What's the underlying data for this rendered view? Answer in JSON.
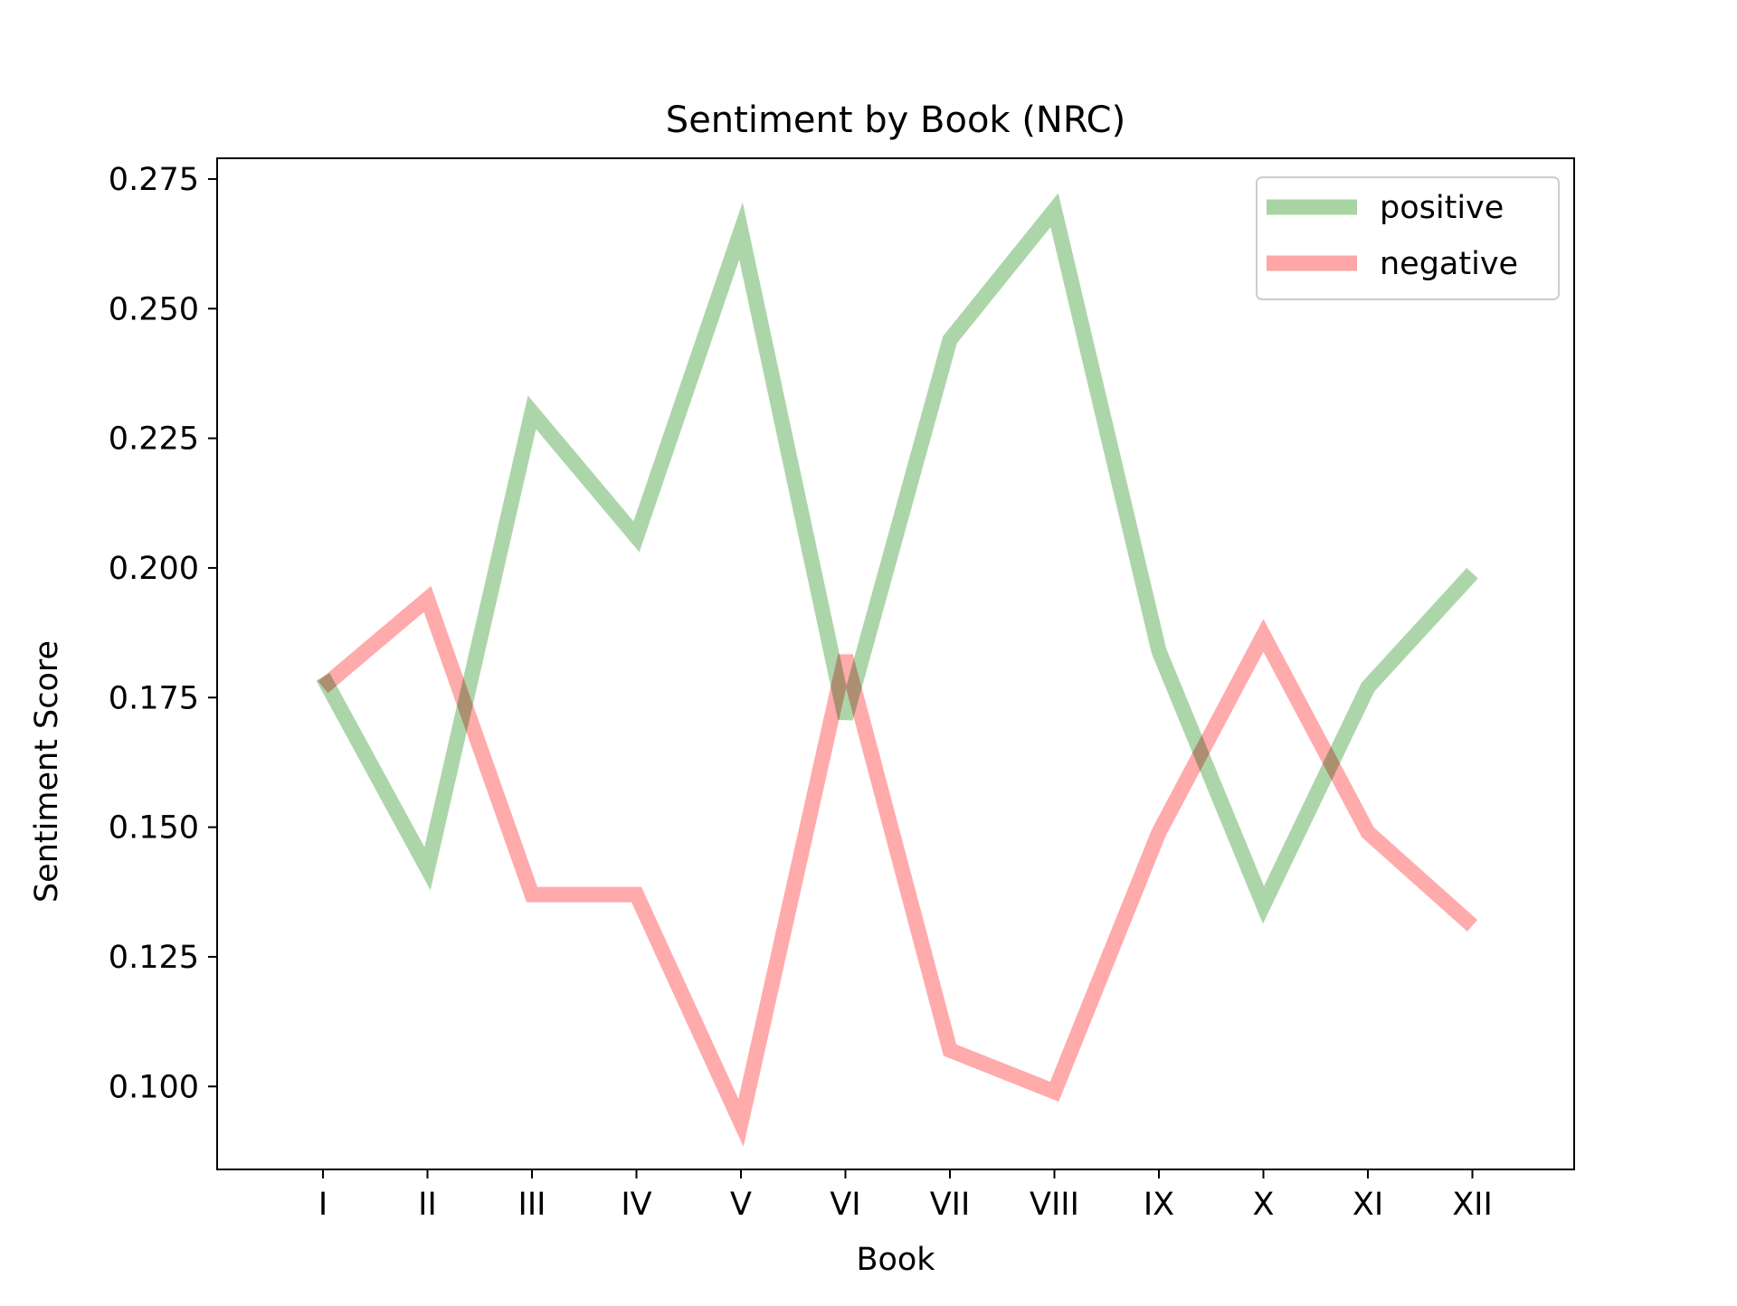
{
  "chart_data": {
    "type": "line",
    "title": "Sentiment by Book (NRC)",
    "xlabel": "Book",
    "ylabel": "Sentiment Score",
    "categories": [
      "I",
      "II",
      "III",
      "IV",
      "V",
      "VI",
      "VII",
      "VIII",
      "IX",
      "X",
      "XI",
      "XII"
    ],
    "ylim": [
      0.084,
      0.279
    ],
    "yticks": [
      "0.100",
      "0.125",
      "0.150",
      "0.175",
      "0.200",
      "0.225",
      "0.250",
      "0.275"
    ],
    "grid": false,
    "legend_position": "top-right",
    "series": [
      {
        "name": "positive",
        "color": "#a8d4a4",
        "values": [
          0.179,
          0.142,
          0.23,
          0.206,
          0.265,
          0.171,
          0.244,
          0.269,
          0.184,
          0.135,
          0.177,
          0.199
        ]
      },
      {
        "name": "negative",
        "color": "#ffa6a6",
        "values": [
          0.177,
          0.194,
          0.137,
          0.137,
          0.093,
          0.183,
          0.107,
          0.099,
          0.149,
          0.187,
          0.149,
          0.131
        ]
      }
    ]
  }
}
